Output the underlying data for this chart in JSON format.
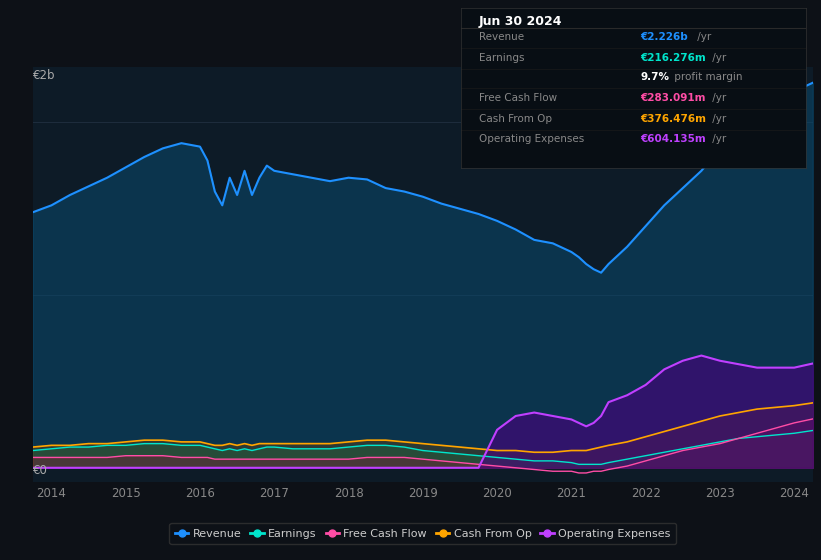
{
  "bg_color": "#0d1117",
  "plot_bg_color": "#0d1b27",
  "grid_color": "#1e2d3d",
  "title_date": "Jun 30 2024",
  "info_rows": [
    {
      "label": "Revenue",
      "value": "€2.226b",
      "suffix": " /yr",
      "color": "#1e90ff"
    },
    {
      "label": "Earnings",
      "value": "€216.276m",
      "suffix": " /yr",
      "color": "#00e5cc"
    },
    {
      "label": "",
      "value": "9.7%",
      "suffix": " profit margin",
      "color": "#ffffff"
    },
    {
      "label": "Free Cash Flow",
      "value": "€283.091m",
      "suffix": " /yr",
      "color": "#ff4da6"
    },
    {
      "label": "Cash From Op",
      "value": "€376.476m",
      "suffix": " /yr",
      "color": "#ffa500"
    },
    {
      "label": "Operating Expenses",
      "value": "€604.135m",
      "suffix": " /yr",
      "color": "#bf40ff"
    }
  ],
  "ylabel_top": "€2b",
  "ylabel_bottom": "€0",
  "years": [
    2013.75,
    2014.0,
    2014.25,
    2014.5,
    2014.75,
    2015.0,
    2015.25,
    2015.5,
    2015.75,
    2016.0,
    2016.1,
    2016.2,
    2016.3,
    2016.4,
    2016.5,
    2016.6,
    2016.7,
    2016.8,
    2016.9,
    2017.0,
    2017.25,
    2017.5,
    2017.75,
    2018.0,
    2018.25,
    2018.5,
    2018.75,
    2019.0,
    2019.25,
    2019.5,
    2019.75,
    2020.0,
    2020.25,
    2020.5,
    2020.75,
    2021.0,
    2021.1,
    2021.2,
    2021.3,
    2021.4,
    2021.5,
    2021.75,
    2022.0,
    2022.25,
    2022.5,
    2022.75,
    2023.0,
    2023.25,
    2023.5,
    2023.75,
    2024.0,
    2024.25
  ],
  "revenue": [
    1.48,
    1.52,
    1.58,
    1.63,
    1.68,
    1.74,
    1.8,
    1.85,
    1.88,
    1.86,
    1.78,
    1.6,
    1.52,
    1.68,
    1.58,
    1.72,
    1.58,
    1.68,
    1.75,
    1.72,
    1.7,
    1.68,
    1.66,
    1.68,
    1.67,
    1.62,
    1.6,
    1.57,
    1.53,
    1.5,
    1.47,
    1.43,
    1.38,
    1.32,
    1.3,
    1.25,
    1.22,
    1.18,
    1.15,
    1.13,
    1.18,
    1.28,
    1.4,
    1.52,
    1.62,
    1.72,
    1.85,
    1.95,
    2.05,
    2.12,
    2.18,
    2.23
  ],
  "earnings": [
    0.1,
    0.11,
    0.12,
    0.12,
    0.13,
    0.13,
    0.14,
    0.14,
    0.13,
    0.13,
    0.12,
    0.11,
    0.1,
    0.11,
    0.1,
    0.11,
    0.1,
    0.11,
    0.12,
    0.12,
    0.11,
    0.11,
    0.11,
    0.12,
    0.13,
    0.13,
    0.12,
    0.1,
    0.09,
    0.08,
    0.07,
    0.06,
    0.05,
    0.04,
    0.04,
    0.03,
    0.02,
    0.02,
    0.02,
    0.02,
    0.03,
    0.05,
    0.07,
    0.09,
    0.11,
    0.13,
    0.15,
    0.17,
    0.18,
    0.19,
    0.2,
    0.216
  ],
  "free_cash_flow": [
    0.06,
    0.06,
    0.06,
    0.06,
    0.06,
    0.07,
    0.07,
    0.07,
    0.06,
    0.06,
    0.06,
    0.05,
    0.05,
    0.05,
    0.05,
    0.05,
    0.05,
    0.05,
    0.05,
    0.05,
    0.05,
    0.05,
    0.05,
    0.05,
    0.06,
    0.06,
    0.06,
    0.05,
    0.04,
    0.03,
    0.02,
    0.01,
    0.0,
    -0.01,
    -0.02,
    -0.02,
    -0.03,
    -0.03,
    -0.02,
    -0.02,
    -0.01,
    0.01,
    0.04,
    0.07,
    0.1,
    0.12,
    0.14,
    0.17,
    0.2,
    0.23,
    0.26,
    0.283
  ],
  "cash_from_op": [
    0.12,
    0.13,
    0.13,
    0.14,
    0.14,
    0.15,
    0.16,
    0.16,
    0.15,
    0.15,
    0.14,
    0.13,
    0.13,
    0.14,
    0.13,
    0.14,
    0.13,
    0.14,
    0.14,
    0.14,
    0.14,
    0.14,
    0.14,
    0.15,
    0.16,
    0.16,
    0.15,
    0.14,
    0.13,
    0.12,
    0.11,
    0.1,
    0.1,
    0.09,
    0.09,
    0.1,
    0.1,
    0.1,
    0.11,
    0.12,
    0.13,
    0.15,
    0.18,
    0.21,
    0.24,
    0.27,
    0.3,
    0.32,
    0.34,
    0.35,
    0.36,
    0.376
  ],
  "op_expenses": [
    0.0,
    0.0,
    0.0,
    0.0,
    0.0,
    0.0,
    0.0,
    0.0,
    0.0,
    0.0,
    0.0,
    0.0,
    0.0,
    0.0,
    0.0,
    0.0,
    0.0,
    0.0,
    0.0,
    0.0,
    0.0,
    0.0,
    0.0,
    0.0,
    0.0,
    0.0,
    0.0,
    0.0,
    0.0,
    0.0,
    0.0,
    0.22,
    0.3,
    0.32,
    0.3,
    0.28,
    0.26,
    0.24,
    0.26,
    0.3,
    0.38,
    0.42,
    0.48,
    0.57,
    0.62,
    0.65,
    0.62,
    0.6,
    0.58,
    0.58,
    0.58,
    0.604
  ],
  "xticks": [
    2014,
    2015,
    2016,
    2017,
    2018,
    2019,
    2020,
    2021,
    2022,
    2023,
    2024
  ],
  "legend": [
    {
      "label": "Revenue",
      "color": "#1e90ff"
    },
    {
      "label": "Earnings",
      "color": "#00e5cc"
    },
    {
      "label": "Free Cash Flow",
      "color": "#ff4da6"
    },
    {
      "label": "Cash From Op",
      "color": "#ffa500"
    },
    {
      "label": "Operating Expenses",
      "color": "#bf40ff"
    }
  ]
}
